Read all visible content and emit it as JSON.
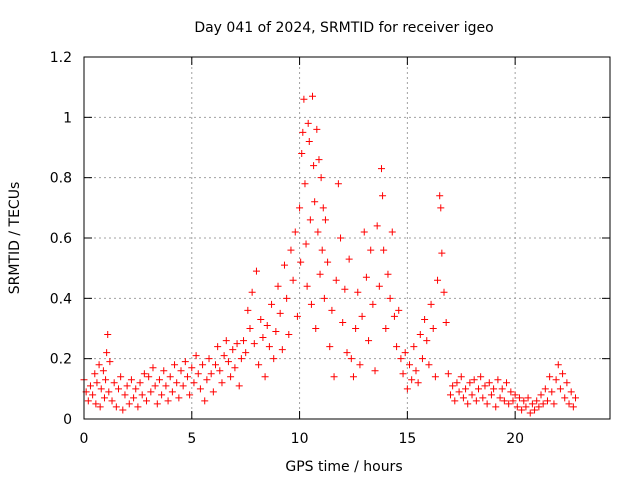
{
  "chart_data": {
    "type": "scatter",
    "title": "Day 041 of 2024, SRMTID for receiver igeo",
    "xlabel": "GPS time / hours",
    "ylabel": "SRMTID / TECUs",
    "xlim": [
      0,
      24.4
    ],
    "ylim": [
      0,
      1.2
    ],
    "x_ticks": [
      0,
      5,
      10,
      15,
      20
    ],
    "x_tick_labels": [
      "0",
      "5",
      "10",
      "15",
      "20"
    ],
    "y_ticks": [
      0,
      0.2,
      0.4,
      0.6,
      0.8,
      1.0,
      1.2
    ],
    "y_tick_labels": [
      "0",
      "0.2",
      "0.4",
      "0.6",
      "0.8",
      "1",
      "1.2"
    ],
    "grid": true,
    "marker": "+",
    "color": "#ff0000",
    "series": [
      {
        "name": "SRMTID",
        "points": [
          [
            0.0,
            0.13
          ],
          [
            0.1,
            0.09
          ],
          [
            0.2,
            0.06
          ],
          [
            0.3,
            0.11
          ],
          [
            0.4,
            0.08
          ],
          [
            0.5,
            0.15
          ],
          [
            0.55,
            0.05
          ],
          [
            0.6,
            0.12
          ],
          [
            0.7,
            0.18
          ],
          [
            0.75,
            0.04
          ],
          [
            0.8,
            0.1
          ],
          [
            0.9,
            0.16
          ],
          [
            0.95,
            0.07
          ],
          [
            1.0,
            0.13
          ],
          [
            1.05,
            0.22
          ],
          [
            1.1,
            0.28
          ],
          [
            1.15,
            0.09
          ],
          [
            1.2,
            0.19
          ],
          [
            1.3,
            0.06
          ],
          [
            1.4,
            0.12
          ],
          [
            1.5,
            0.04
          ],
          [
            1.6,
            0.1
          ],
          [
            1.7,
            0.14
          ],
          [
            1.8,
            0.03
          ],
          [
            1.9,
            0.08
          ],
          [
            2.0,
            0.11
          ],
          [
            2.1,
            0.05
          ],
          [
            2.2,
            0.13
          ],
          [
            2.3,
            0.07
          ],
          [
            2.4,
            0.1
          ],
          [
            2.5,
            0.04
          ],
          [
            2.6,
            0.12
          ],
          [
            2.7,
            0.08
          ],
          [
            2.8,
            0.15
          ],
          [
            2.9,
            0.06
          ],
          [
            3.0,
            0.14
          ],
          [
            3.1,
            0.09
          ],
          [
            3.2,
            0.17
          ],
          [
            3.3,
            0.11
          ],
          [
            3.4,
            0.05
          ],
          [
            3.5,
            0.13
          ],
          [
            3.6,
            0.08
          ],
          [
            3.7,
            0.16
          ],
          [
            3.8,
            0.11
          ],
          [
            3.9,
            0.06
          ],
          [
            4.0,
            0.14
          ],
          [
            4.1,
            0.09
          ],
          [
            4.2,
            0.18
          ],
          [
            4.3,
            0.12
          ],
          [
            4.4,
            0.07
          ],
          [
            4.5,
            0.16
          ],
          [
            4.6,
            0.11
          ],
          [
            4.7,
            0.19
          ],
          [
            4.8,
            0.14
          ],
          [
            4.9,
            0.08
          ],
          [
            5.0,
            0.17
          ],
          [
            5.1,
            0.12
          ],
          [
            5.2,
            0.21
          ],
          [
            5.3,
            0.15
          ],
          [
            5.4,
            0.1
          ],
          [
            5.5,
            0.18
          ],
          [
            5.6,
            0.06
          ],
          [
            5.7,
            0.13
          ],
          [
            5.8,
            0.2
          ],
          [
            5.9,
            0.15
          ],
          [
            6.0,
            0.09
          ],
          [
            6.1,
            0.18
          ],
          [
            6.2,
            0.24
          ],
          [
            6.3,
            0.16
          ],
          [
            6.4,
            0.12
          ],
          [
            6.5,
            0.21
          ],
          [
            6.6,
            0.26
          ],
          [
            6.7,
            0.19
          ],
          [
            6.8,
            0.14
          ],
          [
            6.9,
            0.23
          ],
          [
            7.0,
            0.17
          ],
          [
            7.1,
            0.25
          ],
          [
            7.2,
            0.11
          ],
          [
            7.3,
            0.2
          ],
          [
            7.4,
            0.26
          ],
          [
            7.5,
            0.22
          ],
          [
            7.6,
            0.36
          ],
          [
            7.7,
            0.3
          ],
          [
            7.8,
            0.42
          ],
          [
            7.9,
            0.25
          ],
          [
            8.0,
            0.49
          ],
          [
            8.1,
            0.18
          ],
          [
            8.2,
            0.33
          ],
          [
            8.3,
            0.27
          ],
          [
            8.4,
            0.14
          ],
          [
            8.5,
            0.31
          ],
          [
            8.6,
            0.24
          ],
          [
            8.7,
            0.38
          ],
          [
            8.8,
            0.2
          ],
          [
            8.9,
            0.29
          ],
          [
            9.0,
            0.44
          ],
          [
            9.1,
            0.35
          ],
          [
            9.2,
            0.23
          ],
          [
            9.3,
            0.51
          ],
          [
            9.4,
            0.4
          ],
          [
            9.5,
            0.28
          ],
          [
            9.6,
            0.56
          ],
          [
            9.7,
            0.46
          ],
          [
            9.8,
            0.62
          ],
          [
            9.9,
            0.34
          ],
          [
            10.0,
            0.7
          ],
          [
            10.05,
            0.52
          ],
          [
            10.1,
            0.88
          ],
          [
            10.15,
            0.95
          ],
          [
            10.2,
            1.06
          ],
          [
            10.25,
            0.78
          ],
          [
            10.3,
            0.58
          ],
          [
            10.35,
            0.44
          ],
          [
            10.4,
            0.98
          ],
          [
            10.45,
            0.92
          ],
          [
            10.5,
            0.66
          ],
          [
            10.55,
            0.38
          ],
          [
            10.6,
            1.07
          ],
          [
            10.65,
            0.84
          ],
          [
            10.7,
            0.72
          ],
          [
            10.75,
            0.3
          ],
          [
            10.8,
            0.96
          ],
          [
            10.85,
            0.62
          ],
          [
            10.9,
            0.86
          ],
          [
            10.95,
            0.48
          ],
          [
            11.0,
            0.8
          ],
          [
            11.05,
            0.56
          ],
          [
            11.1,
            0.7
          ],
          [
            11.15,
            0.4
          ],
          [
            11.2,
            0.66
          ],
          [
            11.3,
            0.52
          ],
          [
            11.4,
            0.24
          ],
          [
            11.5,
            0.36
          ],
          [
            11.6,
            0.14
          ],
          [
            11.7,
            0.46
          ],
          [
            11.8,
            0.78
          ],
          [
            11.9,
            0.6
          ],
          [
            12.0,
            0.32
          ],
          [
            12.1,
            0.43
          ],
          [
            12.2,
            0.22
          ],
          [
            12.3,
            0.53
          ],
          [
            12.4,
            0.2
          ],
          [
            12.5,
            0.14
          ],
          [
            12.6,
            0.3
          ],
          [
            12.7,
            0.42
          ],
          [
            12.8,
            0.18
          ],
          [
            12.9,
            0.34
          ],
          [
            13.0,
            0.62
          ],
          [
            13.1,
            0.47
          ],
          [
            13.2,
            0.26
          ],
          [
            13.3,
            0.56
          ],
          [
            13.4,
            0.38
          ],
          [
            13.5,
            0.16
          ],
          [
            13.6,
            0.64
          ],
          [
            13.7,
            0.44
          ],
          [
            13.8,
            0.83
          ],
          [
            13.85,
            0.74
          ],
          [
            13.9,
            0.56
          ],
          [
            14.0,
            0.3
          ],
          [
            14.1,
            0.48
          ],
          [
            14.2,
            0.4
          ],
          [
            14.3,
            0.62
          ],
          [
            14.4,
            0.34
          ],
          [
            14.5,
            0.24
          ],
          [
            14.6,
            0.36
          ],
          [
            14.7,
            0.2
          ],
          [
            14.8,
            0.15
          ],
          [
            14.9,
            0.22
          ],
          [
            15.0,
            0.1
          ],
          [
            15.1,
            0.18
          ],
          [
            15.2,
            0.13
          ],
          [
            15.3,
            0.24
          ],
          [
            15.4,
            0.16
          ],
          [
            15.5,
            0.12
          ],
          [
            15.6,
            0.28
          ],
          [
            15.7,
            0.2
          ],
          [
            15.8,
            0.33
          ],
          [
            15.9,
            0.26
          ],
          [
            16.0,
            0.18
          ],
          [
            16.1,
            0.38
          ],
          [
            16.2,
            0.3
          ],
          [
            16.3,
            0.14
          ],
          [
            16.4,
            0.46
          ],
          [
            16.5,
            0.74
          ],
          [
            16.55,
            0.7
          ],
          [
            16.6,
            0.55
          ],
          [
            16.7,
            0.42
          ],
          [
            16.8,
            0.32
          ],
          [
            16.9,
            0.15
          ],
          [
            17.0,
            0.08
          ],
          [
            17.1,
            0.11
          ],
          [
            17.2,
            0.06
          ],
          [
            17.3,
            0.12
          ],
          [
            17.4,
            0.09
          ],
          [
            17.5,
            0.14
          ],
          [
            17.6,
            0.07
          ],
          [
            17.7,
            0.1
          ],
          [
            17.8,
            0.05
          ],
          [
            17.9,
            0.12
          ],
          [
            18.0,
            0.08
          ],
          [
            18.1,
            0.13
          ],
          [
            18.2,
            0.06
          ],
          [
            18.3,
            0.1
          ],
          [
            18.4,
            0.14
          ],
          [
            18.5,
            0.07
          ],
          [
            18.6,
            0.11
          ],
          [
            18.7,
            0.05
          ],
          [
            18.8,
            0.12
          ],
          [
            18.9,
            0.08
          ],
          [
            19.0,
            0.1
          ],
          [
            19.1,
            0.04
          ],
          [
            19.2,
            0.13
          ],
          [
            19.3,
            0.07
          ],
          [
            19.4,
            0.1
          ],
          [
            19.5,
            0.06
          ],
          [
            19.6,
            0.12
          ],
          [
            19.7,
            0.05
          ],
          [
            19.8,
            0.09
          ],
          [
            19.9,
            0.06
          ],
          [
            20.0,
            0.08
          ],
          [
            20.1,
            0.04
          ],
          [
            20.2,
            0.07
          ],
          [
            20.3,
            0.03
          ],
          [
            20.4,
            0.06
          ],
          [
            20.5,
            0.04
          ],
          [
            20.6,
            0.07
          ],
          [
            20.7,
            0.02
          ],
          [
            20.8,
            0.05
          ],
          [
            20.9,
            0.03
          ],
          [
            21.0,
            0.06
          ],
          [
            21.1,
            0.04
          ],
          [
            21.2,
            0.08
          ],
          [
            21.3,
            0.05
          ],
          [
            21.4,
            0.1
          ],
          [
            21.5,
            0.06
          ],
          [
            21.6,
            0.14
          ],
          [
            21.7,
            0.09
          ],
          [
            21.8,
            0.05
          ],
          [
            21.9,
            0.13
          ],
          [
            22.0,
            0.18
          ],
          [
            22.1,
            0.1
          ],
          [
            22.2,
            0.15
          ],
          [
            22.3,
            0.07
          ],
          [
            22.4,
            0.12
          ],
          [
            22.5,
            0.05
          ],
          [
            22.6,
            0.09
          ],
          [
            22.7,
            0.04
          ],
          [
            22.8,
            0.07
          ]
        ]
      }
    ]
  }
}
